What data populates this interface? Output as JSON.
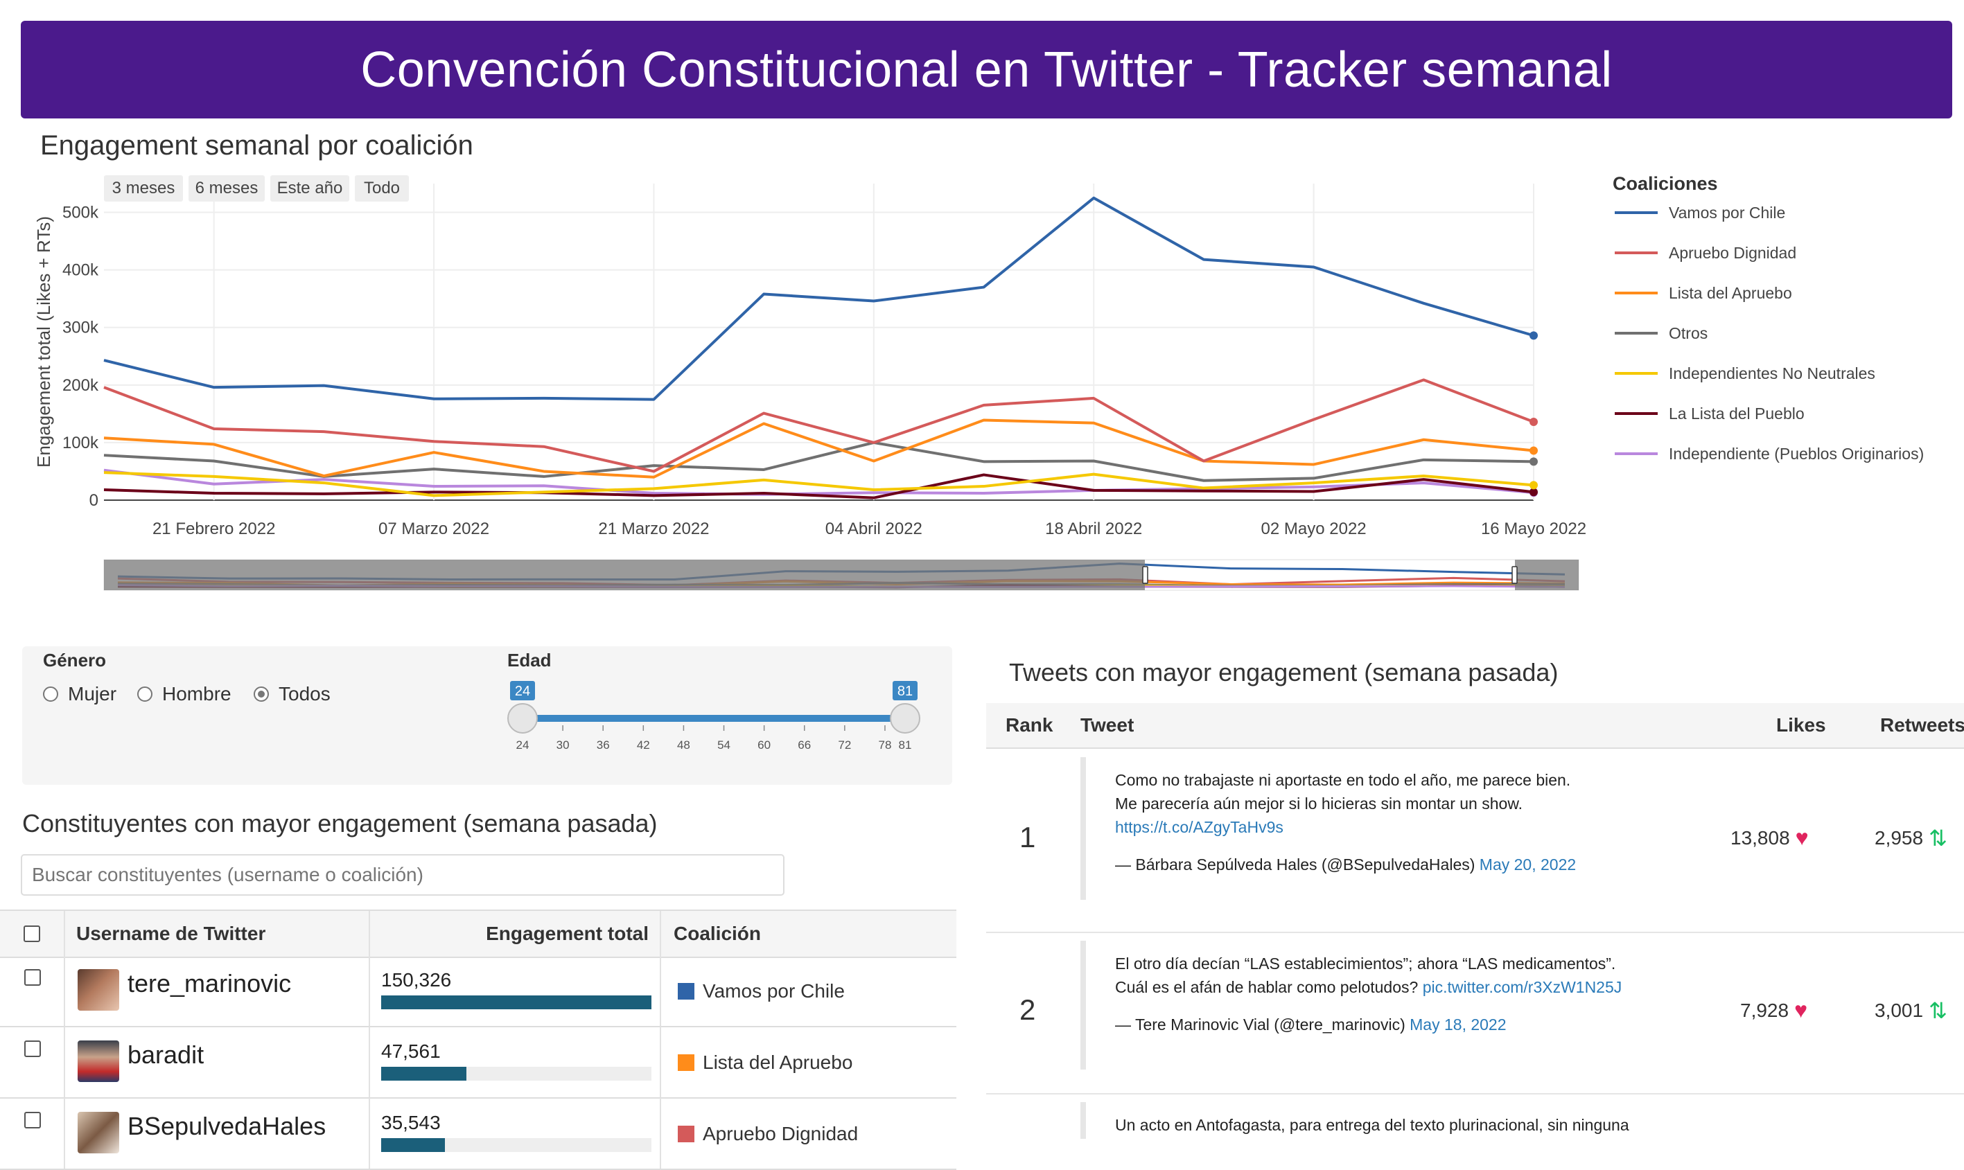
{
  "header": {
    "title": "Convención Constitucional en Twitter - Tracker semanal"
  },
  "engagement_section": {
    "title": "Engagement semanal por coalición",
    "range_buttons": [
      "3 meses",
      "6 meses",
      "Este año",
      "Todo"
    ]
  },
  "chart_data": {
    "type": "line",
    "title": "",
    "ylabel": "Engagement total (Likes + RTs)",
    "xlabel": "",
    "ylim": [
      0,
      550000
    ],
    "y_ticks": [
      "0",
      "100k",
      "200k",
      "300k",
      "400k",
      "500k"
    ],
    "x_tick_labels": [
      "21 Febrero 2022",
      "07 Marzo 2022",
      "21 Marzo 2022",
      "04 Abril 2022",
      "18 Abril 2022",
      "02 Mayo 2022",
      "16 Mayo 2022"
    ],
    "x": [
      "2022-02-14",
      "2022-02-21",
      "2022-02-28",
      "2022-03-07",
      "2022-03-14",
      "2022-03-21",
      "2022-03-28",
      "2022-04-04",
      "2022-04-11",
      "2022-04-18",
      "2022-04-25",
      "2022-05-02",
      "2022-05-09",
      "2022-05-16"
    ],
    "legend_title": "Coaliciones",
    "legend_position": "right",
    "grid": true,
    "series": [
      {
        "name": "Vamos por Chile",
        "color": "#2f64a8",
        "values": [
          243000,
          196000,
          199000,
          176000,
          177000,
          175000,
          358000,
          346000,
          370000,
          525000,
          418000,
          405000,
          342000,
          286000
        ]
      },
      {
        "name": "Apruebo Dignidad",
        "color": "#d45a5a",
        "values": [
          196000,
          124000,
          119000,
          102000,
          93000,
          50000,
          151000,
          100000,
          165000,
          177000,
          68000,
          140000,
          209000,
          136000
        ]
      },
      {
        "name": "Lista del Apruebo",
        "color": "#ff8c1a",
        "values": [
          108000,
          97000,
          42000,
          83000,
          50000,
          40000,
          133000,
          68000,
          139000,
          134000,
          68000,
          62000,
          105000,
          86000
        ]
      },
      {
        "name": "Otros",
        "color": "#707070",
        "values": [
          78000,
          68000,
          41000,
          54000,
          41000,
          60000,
          53000,
          100000,
          67000,
          68000,
          34000,
          38000,
          70000,
          67000
        ]
      },
      {
        "name": "Independientes No Neutrales",
        "color": "#f5c800",
        "values": [
          48000,
          41000,
          30000,
          8000,
          14000,
          20000,
          35000,
          18000,
          24000,
          45000,
          21000,
          30000,
          42000,
          26000
        ]
      },
      {
        "name": "La Lista del Pueblo",
        "color": "#6b0019",
        "values": [
          18000,
          12000,
          11000,
          14000,
          13000,
          8000,
          12000,
          4000,
          44000,
          17000,
          16000,
          15000,
          36000,
          14000
        ]
      },
      {
        "name": "Independiente (Pueblos Originarios)",
        "color": "#b987dd",
        "values": [
          52000,
          28000,
          36000,
          24000,
          25000,
          12000,
          10000,
          13000,
          12000,
          17000,
          20000,
          23000,
          30000,
          13000
        ]
      }
    ]
  },
  "filters": {
    "gender_label": "Género",
    "gender_options": [
      "Mujer",
      "Hombre",
      "Todos"
    ],
    "gender_selected": "Todos",
    "age_label": "Edad",
    "age_min": "24",
    "age_max": "81",
    "age_ticks": [
      "24",
      "30",
      "36",
      "42",
      "48",
      "54",
      "60",
      "66",
      "72",
      "78",
      "81"
    ]
  },
  "constituyentes": {
    "title": "Constituyentes con mayor engagement (semana pasada)",
    "search_placeholder": "Buscar constituyentes (username o coalición)",
    "columns": [
      "Username de Twitter",
      "Engagement total",
      "Coalición"
    ],
    "max_engagement": 150326,
    "rows": [
      {
        "username": "tere_marinovic",
        "engagement": "150,326",
        "engagement_value": 150326,
        "coalition": "Vamos por Chile",
        "color": "#2f64a8"
      },
      {
        "username": "baradit",
        "engagement": "47,561",
        "engagement_value": 47561,
        "coalition": "Lista del Apruebo",
        "color": "#ff8c1a"
      },
      {
        "username": "BSepulvedaHales",
        "engagement": "35,543",
        "engagement_value": 35543,
        "coalition": "Apruebo Dignidad",
        "color": "#d45a5a"
      }
    ]
  },
  "tweets": {
    "title": "Tweets con mayor engagement (semana pasada)",
    "columns": {
      "rank": "Rank",
      "tweet": "Tweet",
      "likes": "Likes",
      "retweets": "Retweets"
    },
    "rows": [
      {
        "rank": "1",
        "line1": "Como no trabajaste ni aportaste en todo el año, me parece bien.",
        "line2": "Me parecería aún mejor si lo hicieras sin montar un show.",
        "link": "https://t.co/AZgyTaHv9s",
        "author": "— Bárbara Sepúlveda Hales (@BSepulvedaHales)",
        "date": "May 20, 2022",
        "likes": "13,808",
        "retweets": "2,958"
      },
      {
        "rank": "2",
        "line1": "El otro día decían “LAS establecimientos”; ahora “LAS medicamentos”.",
        "line2": "Cuál es el afán de hablar como pelotudos?",
        "link": "pic.twitter.com/r3XzW1N25J",
        "author": "— Tere Marinovic Vial (@tere_marinovic)",
        "date": "May 18, 2022",
        "likes": "7,928",
        "retweets": "3,001"
      },
      {
        "line1": "Un acto en Antofagasta, para entrega del texto plurinacional, sin ninguna"
      }
    ]
  }
}
